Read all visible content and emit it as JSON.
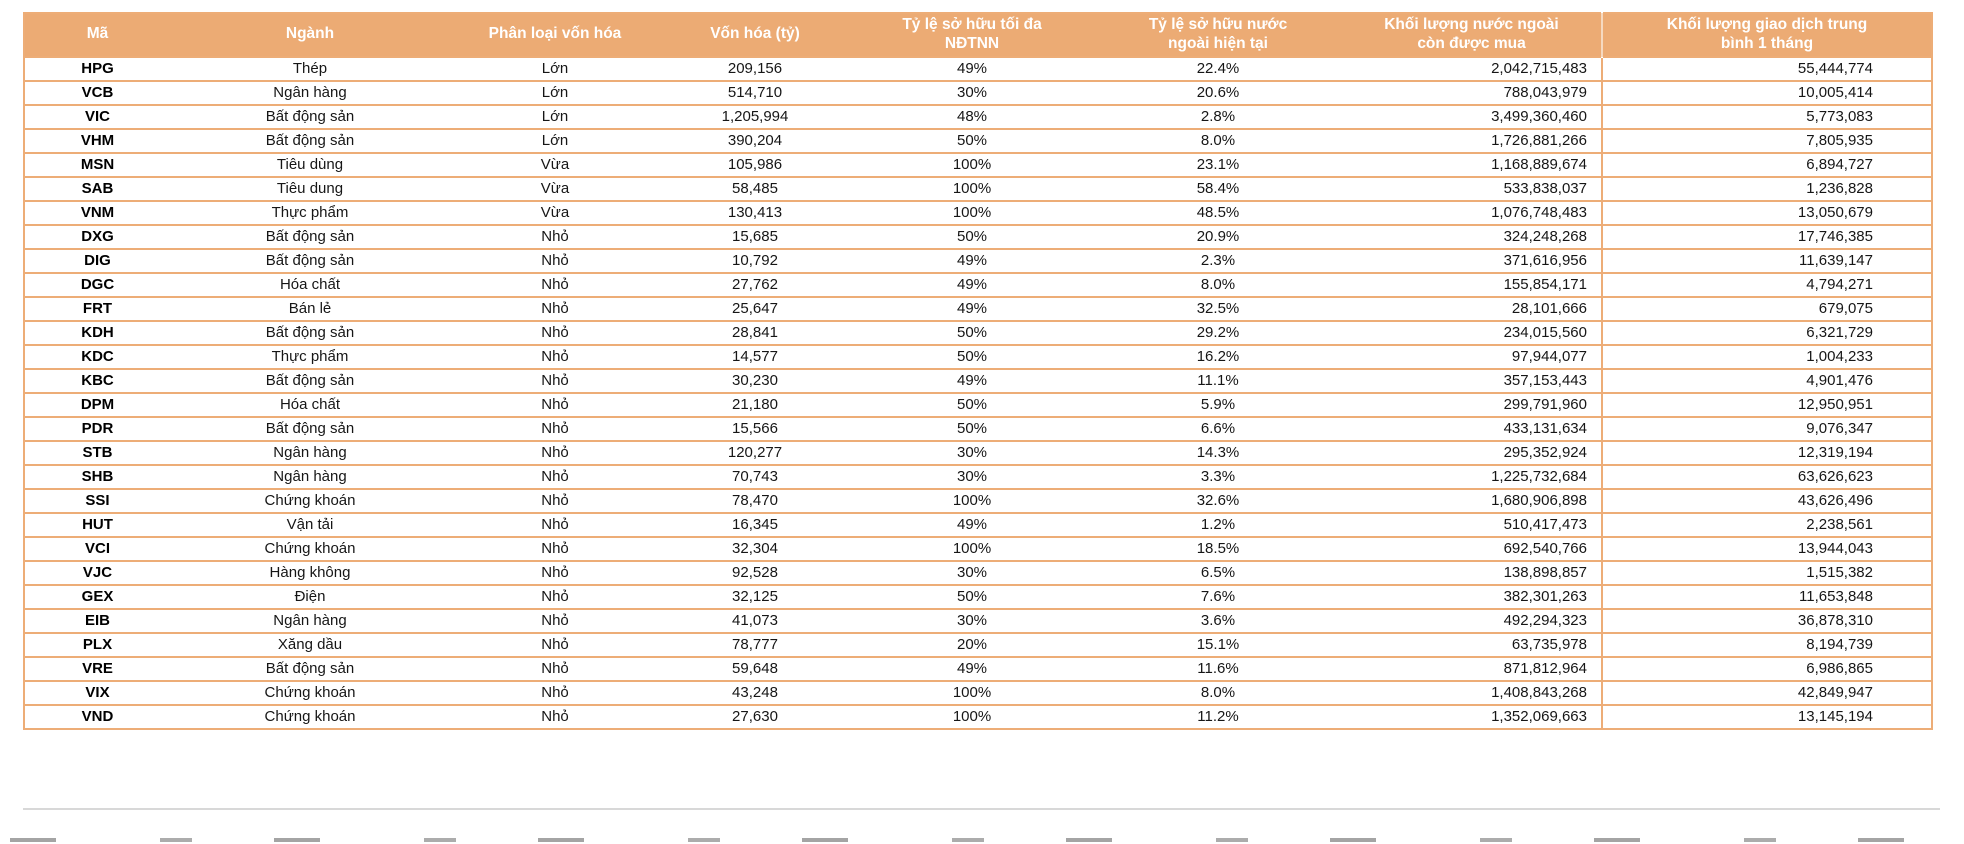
{
  "chart_data": {
    "type": "table",
    "title": "",
    "columns": [
      "Mã",
      "Ngành",
      "Phân loại vốn hóa",
      "Vốn hóa (tỷ)",
      "Tỷ lệ sở hữu tối đa\nNĐTNN",
      "Tỷ lệ sở hữu nước\nngoài hiện tại",
      "Khối lượng nước ngoài\ncòn được mua",
      "Khối lượng giao dịch trung\nbình 1 tháng"
    ],
    "rows": [
      [
        "HPG",
        "Thép",
        "Lớn",
        "209,156",
        "49%",
        "22.4%",
        "2,042,715,483",
        "55,444,774"
      ],
      [
        "VCB",
        "Ngân hàng",
        "Lớn",
        "514,710",
        "30%",
        "20.6%",
        "788,043,979",
        "10,005,414"
      ],
      [
        "VIC",
        "Bất động sản",
        "Lớn",
        "1,205,994",
        "48%",
        "2.8%",
        "3,499,360,460",
        "5,773,083"
      ],
      [
        "VHM",
        "Bất động sản",
        "Lớn",
        "390,204",
        "50%",
        "8.0%",
        "1,726,881,266",
        "7,805,935"
      ],
      [
        "MSN",
        "Tiêu dùng",
        "Vừa",
        "105,986",
        "100%",
        "23.1%",
        "1,168,889,674",
        "6,894,727"
      ],
      [
        "SAB",
        "Tiêu dung",
        "Vừa",
        "58,485",
        "100%",
        "58.4%",
        "533,838,037",
        "1,236,828"
      ],
      [
        "VNM",
        "Thực phẩm",
        "Vừa",
        "130,413",
        "100%",
        "48.5%",
        "1,076,748,483",
        "13,050,679"
      ],
      [
        "DXG",
        "Bất động sản",
        "Nhỏ",
        "15,685",
        "50%",
        "20.9%",
        "324,248,268",
        "17,746,385"
      ],
      [
        "DIG",
        "Bất động sản",
        "Nhỏ",
        "10,792",
        "49%",
        "2.3%",
        "371,616,956",
        "11,639,147"
      ],
      [
        "DGC",
        "Hóa chất",
        "Nhỏ",
        "27,762",
        "49%",
        "8.0%",
        "155,854,171",
        "4,794,271"
      ],
      [
        "FRT",
        "Bán lẻ",
        "Nhỏ",
        "25,647",
        "49%",
        "32.5%",
        "28,101,666",
        "679,075"
      ],
      [
        "KDH",
        "Bất động sản",
        "Nhỏ",
        "28,841",
        "50%",
        "29.2%",
        "234,015,560",
        "6,321,729"
      ],
      [
        "KDC",
        "Thực phẩm",
        "Nhỏ",
        "14,577",
        "50%",
        "16.2%",
        "97,944,077",
        "1,004,233"
      ],
      [
        "KBC",
        "Bất động sản",
        "Nhỏ",
        "30,230",
        "49%",
        "11.1%",
        "357,153,443",
        "4,901,476"
      ],
      [
        "DPM",
        "Hóa chất",
        "Nhỏ",
        "21,180",
        "50%",
        "5.9%",
        "299,791,960",
        "12,950,951"
      ],
      [
        "PDR",
        "Bất động sản",
        "Nhỏ",
        "15,566",
        "50%",
        "6.6%",
        "433,131,634",
        "9,076,347"
      ],
      [
        "STB",
        "Ngân hàng",
        "Nhỏ",
        "120,277",
        "30%",
        "14.3%",
        "295,352,924",
        "12,319,194"
      ],
      [
        "SHB",
        "Ngân hàng",
        "Nhỏ",
        "70,743",
        "30%",
        "3.3%",
        "1,225,732,684",
        "63,626,623"
      ],
      [
        "SSI",
        "Chứng khoán",
        "Nhỏ",
        "78,470",
        "100%",
        "32.6%",
        "1,680,906,898",
        "43,626,496"
      ],
      [
        "HUT",
        "Vận tải",
        "Nhỏ",
        "16,345",
        "49%",
        "1.2%",
        "510,417,473",
        "2,238,561"
      ],
      [
        "VCI",
        "Chứng khoán",
        "Nhỏ",
        "32,304",
        "100%",
        "18.5%",
        "692,540,766",
        "13,944,043"
      ],
      [
        "VJC",
        "Hàng không",
        "Nhỏ",
        "92,528",
        "30%",
        "6.5%",
        "138,898,857",
        "1,515,382"
      ],
      [
        "GEX",
        "Điện",
        "Nhỏ",
        "32,125",
        "50%",
        "7.6%",
        "382,301,263",
        "11,653,848"
      ],
      [
        "EIB",
        "Ngân hàng",
        "Nhỏ",
        "41,073",
        "30%",
        "3.6%",
        "492,294,323",
        "36,878,310"
      ],
      [
        "PLX",
        "Xăng dầu",
        "Nhỏ",
        "78,777",
        "20%",
        "15.1%",
        "63,735,978",
        "8,194,739"
      ],
      [
        "VRE",
        "Bất động sản",
        "Nhỏ",
        "59,648",
        "49%",
        "11.6%",
        "871,812,964",
        "6,986,865"
      ],
      [
        "VIX",
        "Chứng khoán",
        "Nhỏ",
        "43,248",
        "100%",
        "8.0%",
        "1,408,843,268",
        "42,849,947"
      ],
      [
        "VND",
        "Chứng khoán",
        "Nhỏ",
        "27,630",
        "100%",
        "11.2%",
        "1,352,069,663",
        "13,145,194"
      ]
    ],
    "layout": {
      "legend": "none",
      "grid": "horizontal-orange-rules"
    }
  },
  "colors": {
    "header_bg": "#ECAB74",
    "row_rule": "#EDAD77",
    "header_text": "#FFFFFF",
    "cell_text": "#161616",
    "footer_divider": "#D8D8D8"
  }
}
